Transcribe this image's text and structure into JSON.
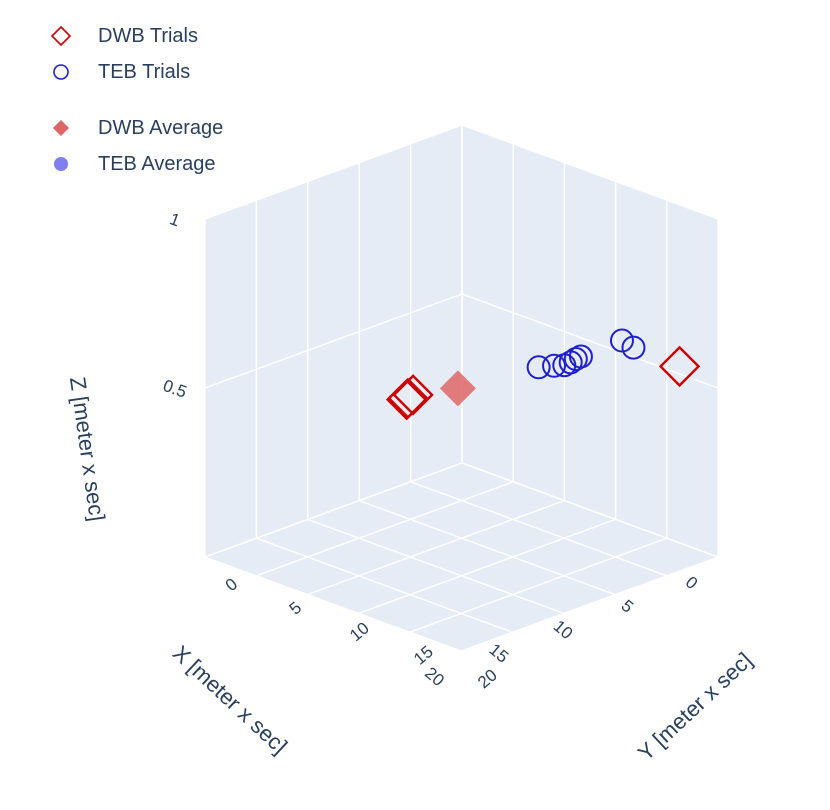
{
  "chart_data": {
    "type": "scatter",
    "projection": "3d",
    "title": "",
    "xlabel": "X [meter x sec]",
    "ylabel": "Y [meter x sec]",
    "zlabel": "Z [meter x sec]",
    "xlim": [
      0,
      20
    ],
    "ylim": [
      0,
      20
    ],
    "zlim": [
      0,
      1
    ],
    "x_ticks": [
      0,
      5,
      10,
      15,
      20
    ],
    "y_ticks": [
      0,
      5,
      10,
      15,
      20
    ],
    "z_ticks": [
      0.5,
      1
    ],
    "z_tick_labels": [
      "0.5",
      "1"
    ],
    "x_tick_labels": [
      "0",
      "5",
      "10",
      "15",
      "20"
    ],
    "y_tick_labels": [
      "0",
      "5",
      "10",
      "15",
      "20"
    ],
    "background_color": "#e5ecf6",
    "grid": true,
    "legend_position": "top-left",
    "series": [
      {
        "name": "DWB Trials",
        "marker": "diamond-open",
        "color": "#cc0000",
        "points": [
          {
            "x": 6.0,
            "y": 1.8,
            "z": 0.3
          },
          {
            "x": 6.2,
            "y": 1.9,
            "z": 0.3
          },
          {
            "x": 5.8,
            "y": 2.0,
            "z": 0.31
          },
          {
            "x": 1.0,
            "y": 18.0,
            "z": 0.55
          }
        ]
      },
      {
        "name": "TEB Trials",
        "marker": "circle-open",
        "color": "#1f1fd0",
        "points": [
          {
            "x": 3.0,
            "y": 9.0,
            "z": 0.45
          },
          {
            "x": 2.5,
            "y": 10.5,
            "z": 0.47
          },
          {
            "x": 2.3,
            "y": 10.8,
            "z": 0.48
          },
          {
            "x": 2.1,
            "y": 11.0,
            "z": 0.49
          },
          {
            "x": 2.0,
            "y": 11.3,
            "z": 0.5
          },
          {
            "x": 2.6,
            "y": 9.8,
            "z": 0.46
          },
          {
            "x": 0.5,
            "y": 13.0,
            "z": 0.55
          },
          {
            "x": 0.8,
            "y": 14.2,
            "z": 0.55
          }
        ]
      },
      {
        "name": "DWB Average",
        "marker": "diamond",
        "color": "#e06666",
        "points": [
          {
            "x": 4.8,
            "y": 4.5,
            "z": 0.35
          }
        ]
      },
      {
        "name": "TEB Average",
        "marker": "circle",
        "color": "#7f7fee",
        "points": []
      }
    ]
  },
  "legend": {
    "items": [
      {
        "label": "DWB Trials"
      },
      {
        "label": "TEB Trials"
      },
      {
        "label": "DWB Average"
      },
      {
        "label": "TEB Average"
      }
    ]
  }
}
